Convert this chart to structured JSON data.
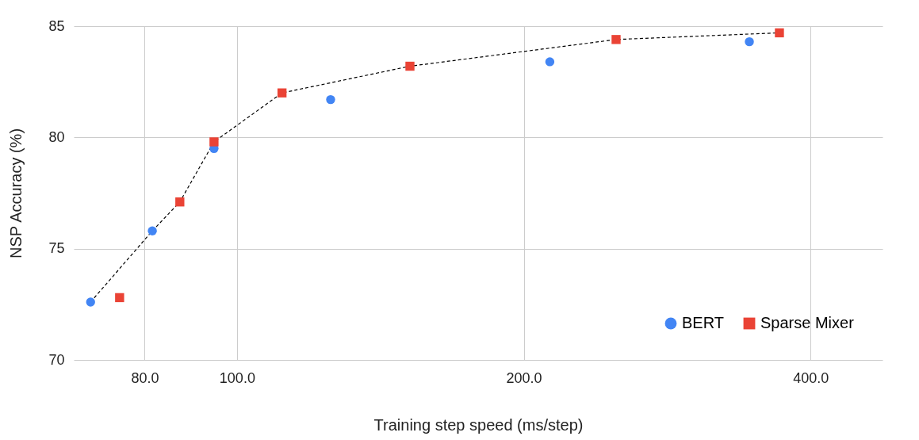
{
  "chart_data": {
    "type": "scatter",
    "xlabel": "Training step speed (ms/step)",
    "ylabel": "NSP Accuracy (%)",
    "log": "x",
    "xlim": [
      67.4,
      476
    ],
    "ylim": [
      70,
      85
    ],
    "xticks": [
      {
        "value": 80,
        "label": "80.0"
      },
      {
        "value": 100,
        "label": "100.0"
      },
      {
        "value": 200,
        "label": "200.0"
      },
      {
        "value": 400,
        "label": "400.0"
      }
    ],
    "yticks": [
      70,
      75,
      80,
      85
    ],
    "grid": true,
    "legend": "bottom right",
    "series": [
      {
        "type": "line",
        "color": "#000000",
        "line_style": "dashed",
        "marker": "none",
        "x": [
          70.2,
          81.5,
          87.1,
          94.6,
          111.5,
          151.9,
          250,
          371
        ],
        "values": [
          72.6,
          75.8,
          77.1,
          79.8,
          82.0,
          83.2,
          84.4,
          84.7
        ]
      },
      {
        "name": "BERT",
        "color": "#4285f4",
        "marker": "circle",
        "x": [
          70.2,
          81.5,
          94.6,
          125.4,
          213,
          345
        ],
        "values": [
          72.6,
          75.8,
          79.5,
          81.7,
          83.4,
          84.3
        ]
      },
      {
        "name": "Sparse Mixer",
        "color": "#ea4335",
        "marker": "square",
        "x": [
          75.3,
          87.1,
          94.6,
          111.5,
          151.9,
          250,
          371
        ],
        "values": [
          72.8,
          77.1,
          79.8,
          82.0,
          83.2,
          84.4,
          84.7
        ]
      }
    ]
  }
}
